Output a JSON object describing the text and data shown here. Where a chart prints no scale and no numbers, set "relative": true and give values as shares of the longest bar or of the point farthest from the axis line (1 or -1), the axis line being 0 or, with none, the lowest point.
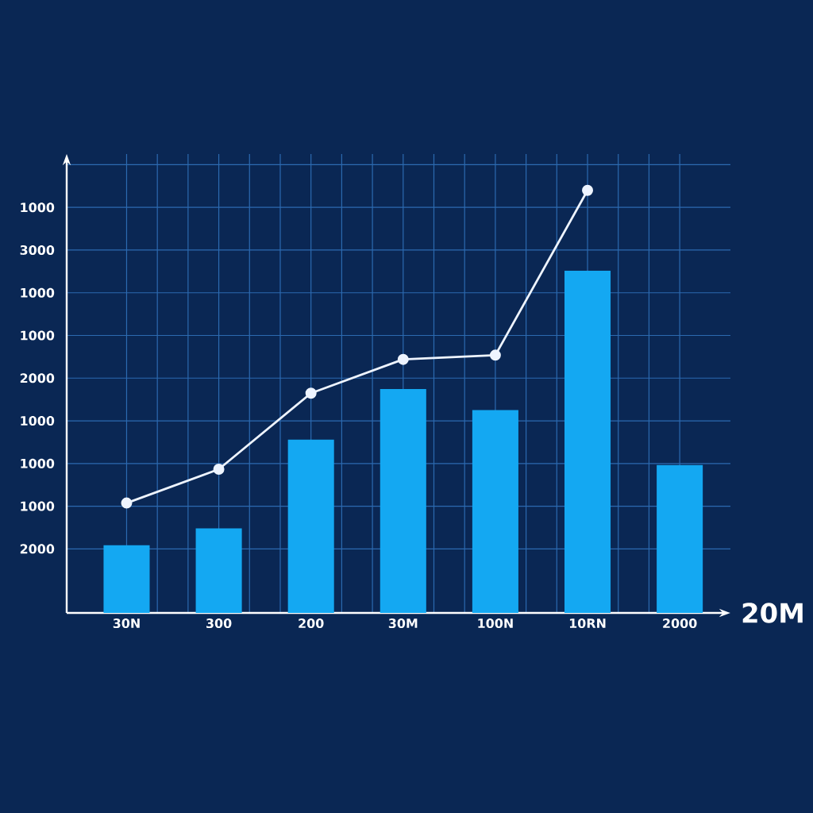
{
  "chart_data": {
    "type": "bar",
    "xlabel": "20M",
    "relative": true,
    "categories": [
      "30N",
      "300",
      "200",
      "30M",
      "100N",
      "10RN",
      "2000"
    ],
    "series": [
      {
        "color": "#14a8f2",
        "values": [
          0.16,
          0.2,
          0.41,
          0.53,
          0.48,
          0.81,
          0.35
        ]
      },
      {
        "type": "line",
        "color": "#eef4ff",
        "marker": "circle",
        "values": [
          0.26,
          0.34,
          0.52,
          0.6,
          0.61,
          1,
          null
        ]
      }
    ],
    "annotations": [
      "1000",
      "3000",
      "1000",
      "1000",
      "2000",
      "1000",
      "1000",
      "1000",
      "2000"
    ],
    "grid": true
  }
}
